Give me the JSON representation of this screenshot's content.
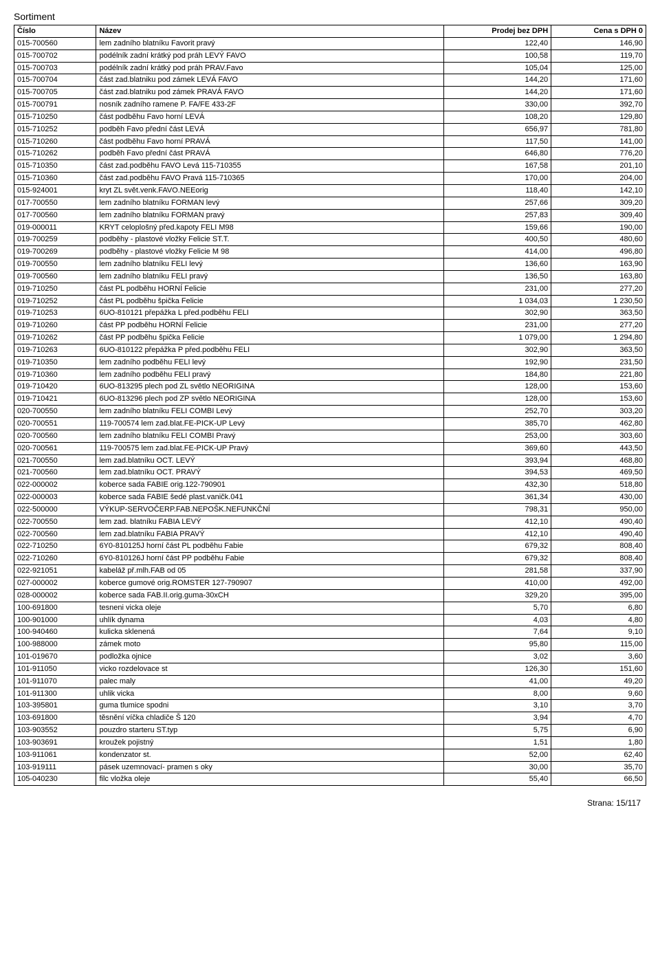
{
  "title": "Sortiment",
  "columns": [
    "Číslo",
    "Název",
    "Prodej bez DPH",
    "Cena s DPH 0"
  ],
  "footer": "Strana: 15/117",
  "rows": [
    [
      "015-700560",
      "lem zadního blatníku Favorit pravý",
      "122,40",
      "146,90"
    ],
    [
      "015-700702",
      "podélník zadní krátký pod práh LEVÝ FAVO",
      "100,58",
      "119,70"
    ],
    [
      "015-700703",
      "podélník zadní krátký pod práh PRAV.Favo",
      "105,04",
      "125,00"
    ],
    [
      "015-700704",
      "část zad.blatniku pod zámek LEVÁ FAVO",
      "144,20",
      "171,60"
    ],
    [
      "015-700705",
      "část zad.blatniku pod zámek PRAVÁ FAVO",
      "144,20",
      "171,60"
    ],
    [
      "015-700791",
      "nosník zadního ramene P. FA/FE 433-2F",
      "330,00",
      "392,70"
    ],
    [
      "015-710250",
      "část podběhu Favo horní LEVÁ",
      "108,20",
      "129,80"
    ],
    [
      "015-710252",
      "podběh Favo přední část LEVÁ",
      "656,97",
      "781,80"
    ],
    [
      "015-710260",
      "část podběhu Favo horní PRAVÁ",
      "117,50",
      "141,00"
    ],
    [
      "015-710262",
      "podběh Favo přední část PRAVÁ",
      "646,80",
      "776,20"
    ],
    [
      "015-710350",
      "část zad.podběhu FAVO Levá 115-710355",
      "167,58",
      "201,10"
    ],
    [
      "015-710360",
      "část zad.podběhu FAVO Pravá 115-710365",
      "170,00",
      "204,00"
    ],
    [
      "015-924001",
      "kryt ZL svět.venk.FAVO.NEEorig",
      "118,40",
      "142,10"
    ],
    [
      "017-700550",
      "lem zadního blatníku FORMAN levý",
      "257,66",
      "309,20"
    ],
    [
      "017-700560",
      "lem zadního blatníku FORMAN pravý",
      "257,83",
      "309,40"
    ],
    [
      "019-000011",
      "KRYT celoplošný před.kapoty FELI M98",
      "159,66",
      "190,00"
    ],
    [
      "019-700259",
      "podběhy - plastové vložky Felicie ST.T.",
      "400,50",
      "480,60"
    ],
    [
      "019-700269",
      "podběhy - plastové vložky Felicie M 98",
      "414,00",
      "496,80"
    ],
    [
      "019-700550",
      "lem zadního blatníku FELI levý",
      "136,60",
      "163,90"
    ],
    [
      "019-700560",
      "lem zadního blatníku FELI pravý",
      "136,50",
      "163,80"
    ],
    [
      "019-710250",
      "část PL podběhu HORNÍ Felicie",
      "231,00",
      "277,20"
    ],
    [
      "019-710252",
      "část PL podběhu špička Felicie",
      "1 034,03",
      "1 230,50"
    ],
    [
      "019-710253",
      "6UO-810121 přepážka L před.podběhu FELI",
      "302,90",
      "363,50"
    ],
    [
      "019-710260",
      "část PP podběhu HORNÍ Felicie",
      "231,00",
      "277,20"
    ],
    [
      "019-710262",
      "část PP podběhu špička Felicie",
      "1 079,00",
      "1 294,80"
    ],
    [
      "019-710263",
      "6UO-810122 přepážka P před.podběhu FELI",
      "302,90",
      "363,50"
    ],
    [
      "019-710350",
      "lem zadního podběhu FELI levý",
      "192,90",
      "231,50"
    ],
    [
      "019-710360",
      "lem zadního podběhu FELI pravý",
      "184,80",
      "221,80"
    ],
    [
      "019-710420",
      "6UO-813295 plech pod ZL světlo NEORIGINA",
      "128,00",
      "153,60"
    ],
    [
      "019-710421",
      "6UO-813296 plech pod ZP světlo NEORIGINA",
      "128,00",
      "153,60"
    ],
    [
      "020-700550",
      "lem zadního blatníku FELI COMBI Levý",
      "252,70",
      "303,20"
    ],
    [
      "020-700551",
      "119-700574 lem zad.blat.FE-PICK-UP Levý",
      "385,70",
      "462,80"
    ],
    [
      "020-700560",
      "lem zadního blatníku FELI COMBI Pravý",
      "253,00",
      "303,60"
    ],
    [
      "020-700561",
      "119-700575 lem zad.blat.FE-PICK-UP Pravý",
      "369,60",
      "443,50"
    ],
    [
      "021-700550",
      "lem zad.blatníku OCT. LEVÝ",
      "393,94",
      "468,80"
    ],
    [
      "021-700560",
      "lem zad.blatníku OCT. PRAVÝ",
      "394,53",
      "469,50"
    ],
    [
      "022-000002",
      "koberce sada FABIE orig.122-790901",
      "432,30",
      "518,80"
    ],
    [
      "022-000003",
      "koberce sada FABIE šedé plast.vaničk.041",
      "361,34",
      "430,00"
    ],
    [
      "022-500000",
      "VÝKUP-SERVOČERP.FAB.NEPOŠK.NEFUNKČNÍ",
      "798,31",
      "950,00"
    ],
    [
      "022-700550",
      "lem zad. blatníku FABIA LEVÝ",
      "412,10",
      "490,40"
    ],
    [
      "022-700560",
      "lem zad.blatníku FABIA PRAVÝ",
      "412,10",
      "490,40"
    ],
    [
      "022-710250",
      "6Y0-810125J horní část PL podběhu Fabie",
      "679,32",
      "808,40"
    ],
    [
      "022-710260",
      "6Y0-810126J horní část PP podběhu Fabie",
      "679,32",
      "808,40"
    ],
    [
      "022-921051",
      "kabeláž př.mlh.FAB od 05",
      "281,58",
      "337,90"
    ],
    [
      "027-000002",
      "koberce gumové orig.ROMSTER 127-790907",
      "410,00",
      "492,00"
    ],
    [
      "028-000002",
      "koberce sada FAB.II.orig.guma-30xCH",
      "329,20",
      "395,00"
    ],
    [
      "100-691800",
      "tesneni vicka oleje",
      "5,70",
      "6,80"
    ],
    [
      "100-901000",
      "uhlík dynama",
      "4,03",
      "4,80"
    ],
    [
      "100-940460",
      "kulicka sklenená",
      "7,64",
      "9,10"
    ],
    [
      "100-988000",
      "zámek moto",
      "95,80",
      "115,00"
    ],
    [
      "101-019670",
      "podložka ojnice",
      "3,02",
      "3,60"
    ],
    [
      "101-911050",
      "vicko rozdelovace st",
      "126,30",
      "151,60"
    ],
    [
      "101-911070",
      "palec maly",
      "41,00",
      "49,20"
    ],
    [
      "101-911300",
      "uhlik vicka",
      "8,00",
      "9,60"
    ],
    [
      "103-395801",
      "guma tlumice spodni",
      "3,10",
      "3,70"
    ],
    [
      "103-691800",
      "těsnění víčka chladiče Š 120",
      "3,94",
      "4,70"
    ],
    [
      "103-903552",
      "pouzdro starteru ST.typ",
      "5,75",
      "6,90"
    ],
    [
      "103-903691",
      "kroužek pojistný",
      "1,51",
      "1,80"
    ],
    [
      "103-911061",
      "kondenzator st.",
      "52,00",
      "62,40"
    ],
    [
      "103-919111",
      "pásek uzemnovací- pramen s oky",
      "30,00",
      "35,70"
    ],
    [
      "105-040230",
      "filc vložka oleje",
      "55,40",
      "66,50"
    ]
  ]
}
